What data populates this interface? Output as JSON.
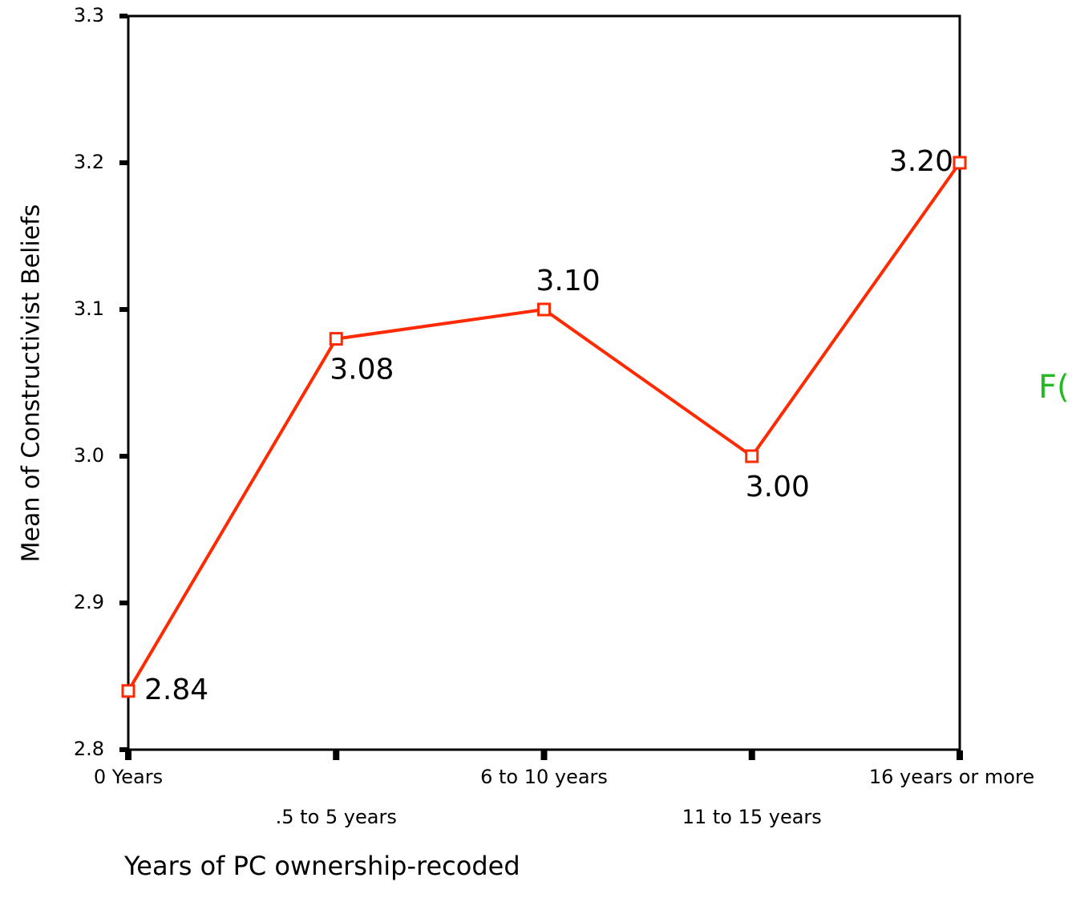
{
  "chart_data": {
    "type": "line",
    "y_label": "Mean of Constructivist Beliefs",
    "x_label": "Years of PC ownership-recoded",
    "annotation": "F(",
    "categories": [
      "0 Years",
      ".5 to 5 years",
      "6 to 10 years",
      "11 to 15 years",
      "16 years or more"
    ],
    "series": [
      {
        "color": "#ff2a00",
        "values": [
          2.84,
          3.08,
          3.1,
          3.0,
          3.2
        ],
        "value_labels": [
          "2.84",
          "3.08",
          "3.10",
          "3.00",
          "3.20"
        ]
      }
    ],
    "ylim": [
      2.8,
      3.3
    ],
    "yticks": [
      2.8,
      2.9,
      {
        "value": 3,
        "label": "3.0"
      },
      3.1,
      3.2,
      3.3
    ]
  }
}
